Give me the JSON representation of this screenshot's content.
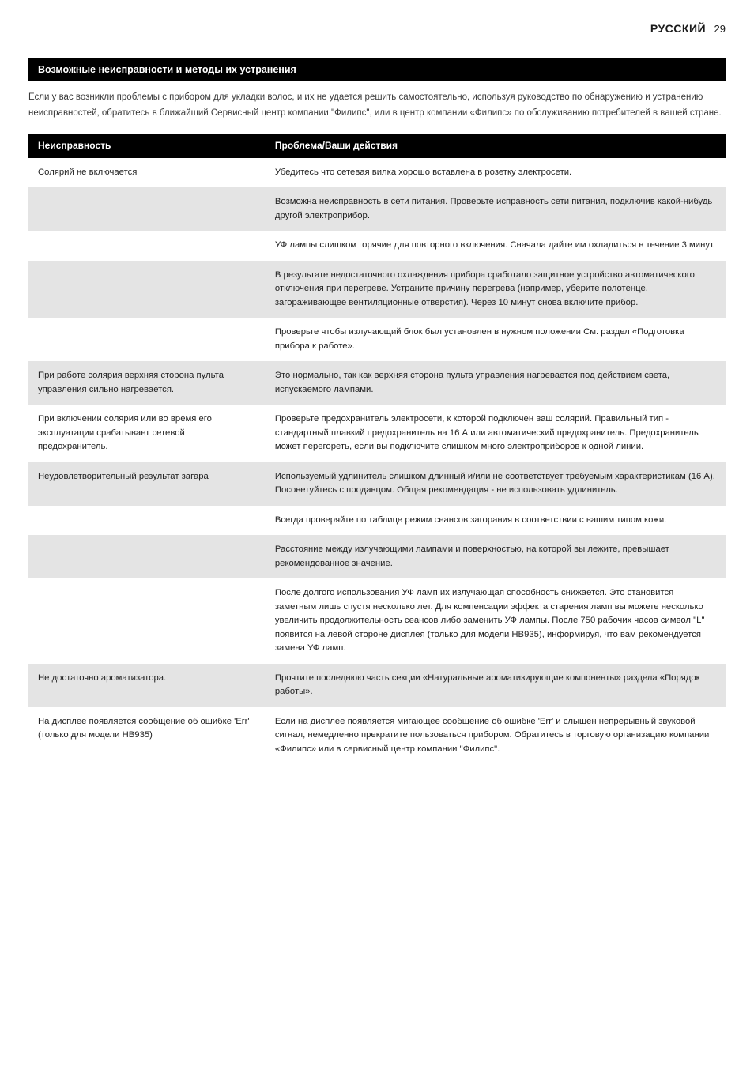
{
  "header": {
    "language": "РУССКИЙ",
    "page_number": "29"
  },
  "section_title": "Возможные неисправности и методы их устранения",
  "intro_text": "Если у вас возникли проблемы с прибором для укладки волос, и их не удается решить самостоятельно, используя руководство по обнаружению и устранению неисправностей, обратитесь в ближайший Сервисный центр компании \"Филипс\", или в центр компании «Филипс» по обслуживанию потребителей в вашей стране.",
  "table": {
    "columns": [
      "Неисправность",
      "Проблема/Ваши действия"
    ],
    "rows": [
      {
        "shade": "light",
        "left": "Солярий не включается",
        "right": "Убедитесь что сетевая вилка хорошо вставлена в розетку электросети."
      },
      {
        "shade": "shade",
        "left": "",
        "right": "Возможна неисправность в сети питания. Проверьте исправность сети питания, подключив какой-нибудь другой электроприбор."
      },
      {
        "shade": "light",
        "left": "",
        "right": "УФ лампы слишком горячие для повторного включения. Сначала дайте им охладиться в течение 3 минут."
      },
      {
        "shade": "shade",
        "left": "",
        "right": "В результате недостаточного охлаждения прибора сработало защитное устройство автоматического отключения при перегреве. Устраните причину перегрева (например, уберите полотенце, загораживающее вентиляционные отверстия). Через 10 минут снова включите прибор."
      },
      {
        "shade": "light",
        "left": "",
        "right": "Проверьте чтобы излучающий блок был установлен в нужном положении См. раздел «Подготовка прибора к работе»."
      },
      {
        "shade": "shade",
        "left": "При работе солярия верхняя сторона пульта управления сильно нагревается.",
        "right": "Это нормально, так как верхняя сторона пульта управления нагревается под действием света, испускаемого лампами."
      },
      {
        "shade": "light",
        "left": "При включении солярия или во время его эксплуатации срабатывает сетевой предохранитель.",
        "right": "Проверьте предохранитель электросети, к которой подключен ваш солярий. Правильный тип - стандартный плавкий предохранитель на 16 А или автоматический предохранитель. Предохранитель может перегореть, если вы подключите слишком много электроприборов к одной линии."
      },
      {
        "shade": "shade",
        "left": "Неудовлетворительный результат загара",
        "right": "Используемый удлинитель слишком длинный и/или не соответствует требуемым характеристикам (16 А). Посоветуйтесь с продавцом. Общая рекомендация - не использовать удлинитель."
      },
      {
        "shade": "light",
        "left": "",
        "right": "Всегда проверяйте по таблице режим сеансов загорания в соответствии с вашим типом кожи."
      },
      {
        "shade": "shade",
        "left": "",
        "right": "Расстояние между излучающими лампами и поверхностью, на которой вы лежите, превышает рекомендованное значение."
      },
      {
        "shade": "light",
        "left": "",
        "right": "После долгого использования УФ ламп их излучающая способность снижается. Это становится заметным лишь спустя несколько лет. Для компенсации эффекта старения ламп вы можете несколько увеличить продолжительность сеансов либо заменить УФ лампы. После 750 рабочих часов символ \"L\" появится на левой стороне дисплея (только для модели HB935), информируя, что вам рекомендуется замена УФ ламп."
      },
      {
        "shade": "shade",
        "left": "Не достаточно ароматизатора.",
        "right": "Прочтите последнюю часть секции «Натуральные ароматизирующие компоненты» раздела «Порядок работы»."
      },
      {
        "shade": "light",
        "left": "На дисплее появляется сообщение об ошибке 'Err' (только для модели HB935)",
        "right": "Если на дисплее появляется мигающее сообщение об ошибке 'Err' и слышен непрерывный звуковой сигнал, немедленно прекратите пользоваться прибором. Обратитесь в торговую организацию компании «Филипс» или в сервисный центр компании \"Филипс\"."
      }
    ]
  },
  "colors": {
    "page_bg": "#ffffff",
    "bar_bg": "#000000",
    "bar_text": "#ffffff",
    "shade_bg": "#e4e4e4",
    "body_text": "#1a1a1a",
    "intro_text_color": "#3a3a3a"
  },
  "typography": {
    "lang_fontsize": 14,
    "pagenum_fontsize": 13,
    "section_fontsize": 12.5,
    "intro_fontsize": 11.5,
    "table_fontsize": 11.3,
    "th_fontsize": 12
  }
}
